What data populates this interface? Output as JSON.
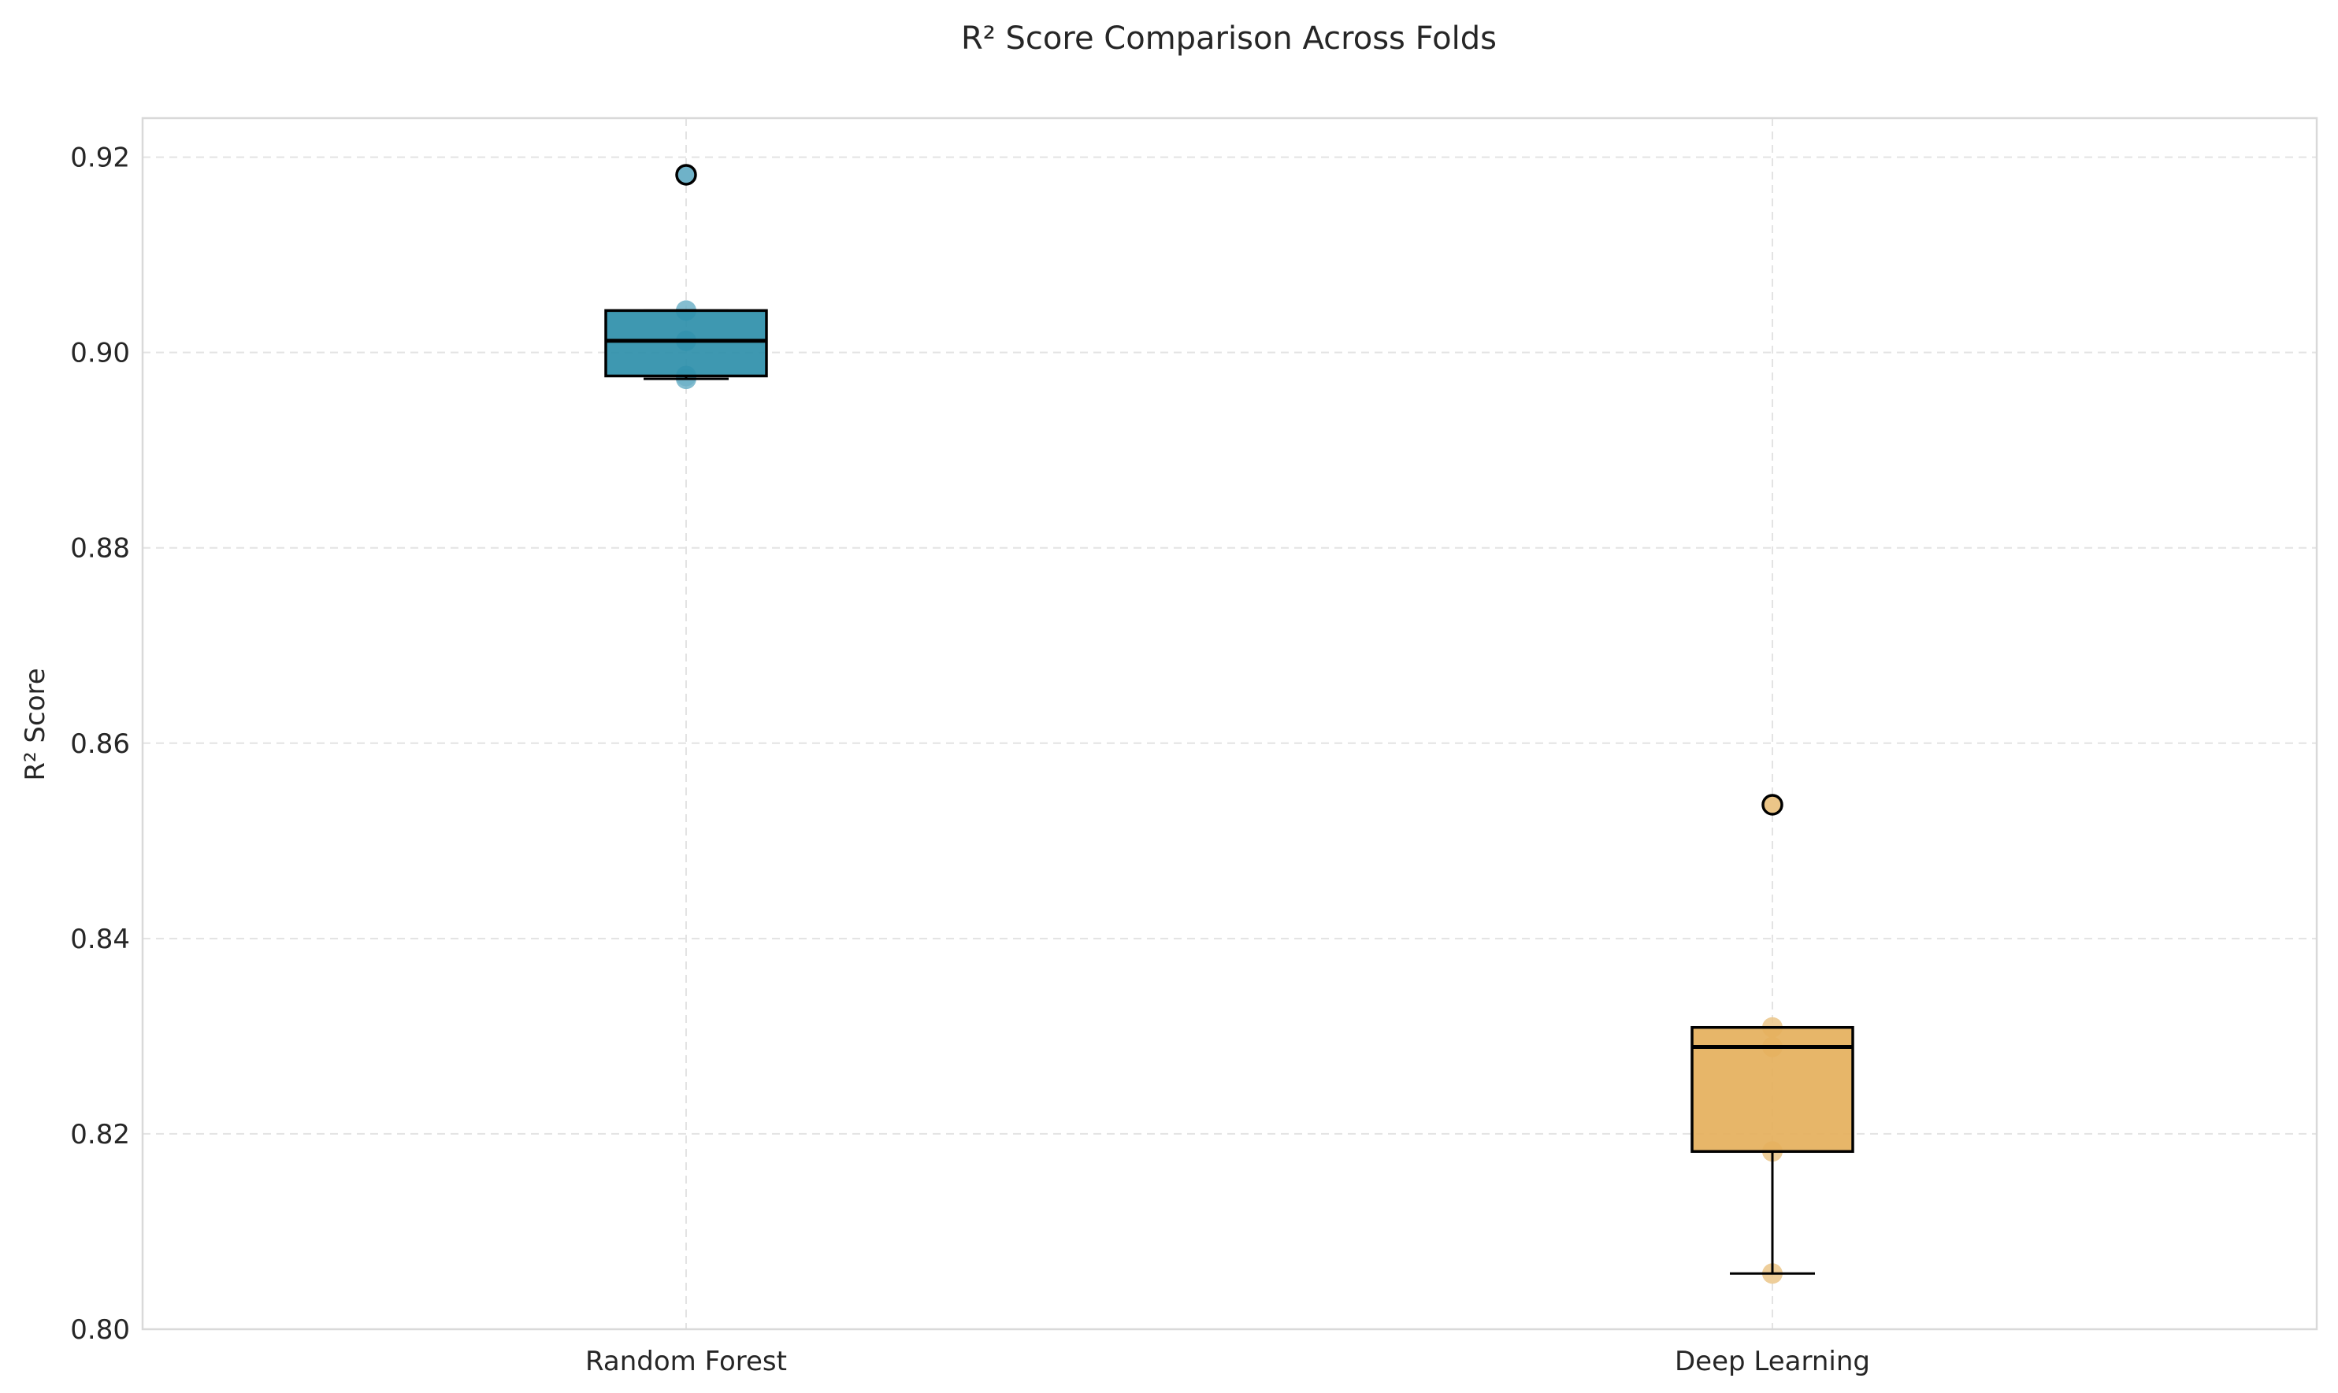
{
  "chart_data": {
    "type": "box",
    "title": "R² Score Comparison Across Folds",
    "xlabel": "",
    "ylabel": "R² Score",
    "ylim": [
      0.8,
      0.924
    ],
    "yticks": [
      0.8,
      0.82,
      0.84,
      0.86,
      0.88,
      0.9,
      0.92
    ],
    "ytick_labels": [
      "0.80",
      "0.82",
      "0.84",
      "0.86",
      "0.88",
      "0.90",
      "0.92"
    ],
    "grid": true,
    "categories": [
      "Random Forest",
      "Deep Learning"
    ],
    "series": [
      {
        "color": "#2E8FAA",
        "point_color": "#6FB2C8",
        "whisker_low": 0.8973,
        "q1": 0.8976,
        "median": 0.9012,
        "q3": 0.9043,
        "whisker_high": 0.9043,
        "outliers": [
          0.9182
        ],
        "points": [
          0.8973,
          0.8976,
          0.9012,
          0.9043,
          0.9182
        ]
      },
      {
        "color": "#E5B05C",
        "point_color": "#EBC588",
        "whisker_low": 0.8057,
        "q1": 0.8182,
        "median": 0.8289,
        "q3": 0.8309,
        "whisker_high": 0.8309,
        "outliers": [
          0.8537
        ],
        "points": [
          0.8057,
          0.8182,
          0.8289,
          0.8309,
          0.8537
        ]
      }
    ]
  }
}
